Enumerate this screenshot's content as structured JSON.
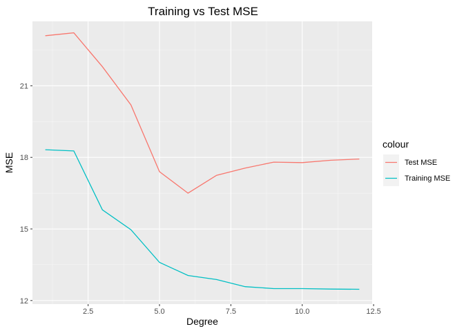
{
  "chart_data": {
    "type": "line",
    "title": "Training vs Test MSE",
    "xlabel": "Degree",
    "ylabel": "MSE",
    "xlim": [
      0.55,
      12.45
    ],
    "ylim": [
      11.85,
      23.7
    ],
    "xticks": [
      2.5,
      5.0,
      7.5,
      10.0,
      12.5
    ],
    "xtick_labels": [
      "2.5",
      "5.0",
      "7.5",
      "10.0",
      "12.5"
    ],
    "yticks": [
      12,
      15,
      18,
      21
    ],
    "ytick_labels": [
      "12",
      "15",
      "18",
      "21"
    ],
    "grid": true,
    "legend": {
      "title": "colour",
      "placement": "right"
    },
    "x": [
      1,
      2,
      3,
      4,
      5,
      6,
      7,
      8,
      9,
      10,
      11,
      12
    ],
    "series": [
      {
        "name": "Test MSE",
        "color": "#F8766D",
        "values": [
          23.1,
          23.22,
          21.8,
          20.2,
          17.4,
          16.5,
          17.25,
          17.55,
          17.8,
          17.78,
          17.88,
          17.93
        ]
      },
      {
        "name": "Training MSE",
        "color": "#00BFC4",
        "values": [
          18.32,
          18.27,
          15.8,
          14.97,
          13.6,
          13.05,
          12.88,
          12.58,
          12.5,
          12.5,
          12.48,
          12.47
        ]
      }
    ]
  }
}
